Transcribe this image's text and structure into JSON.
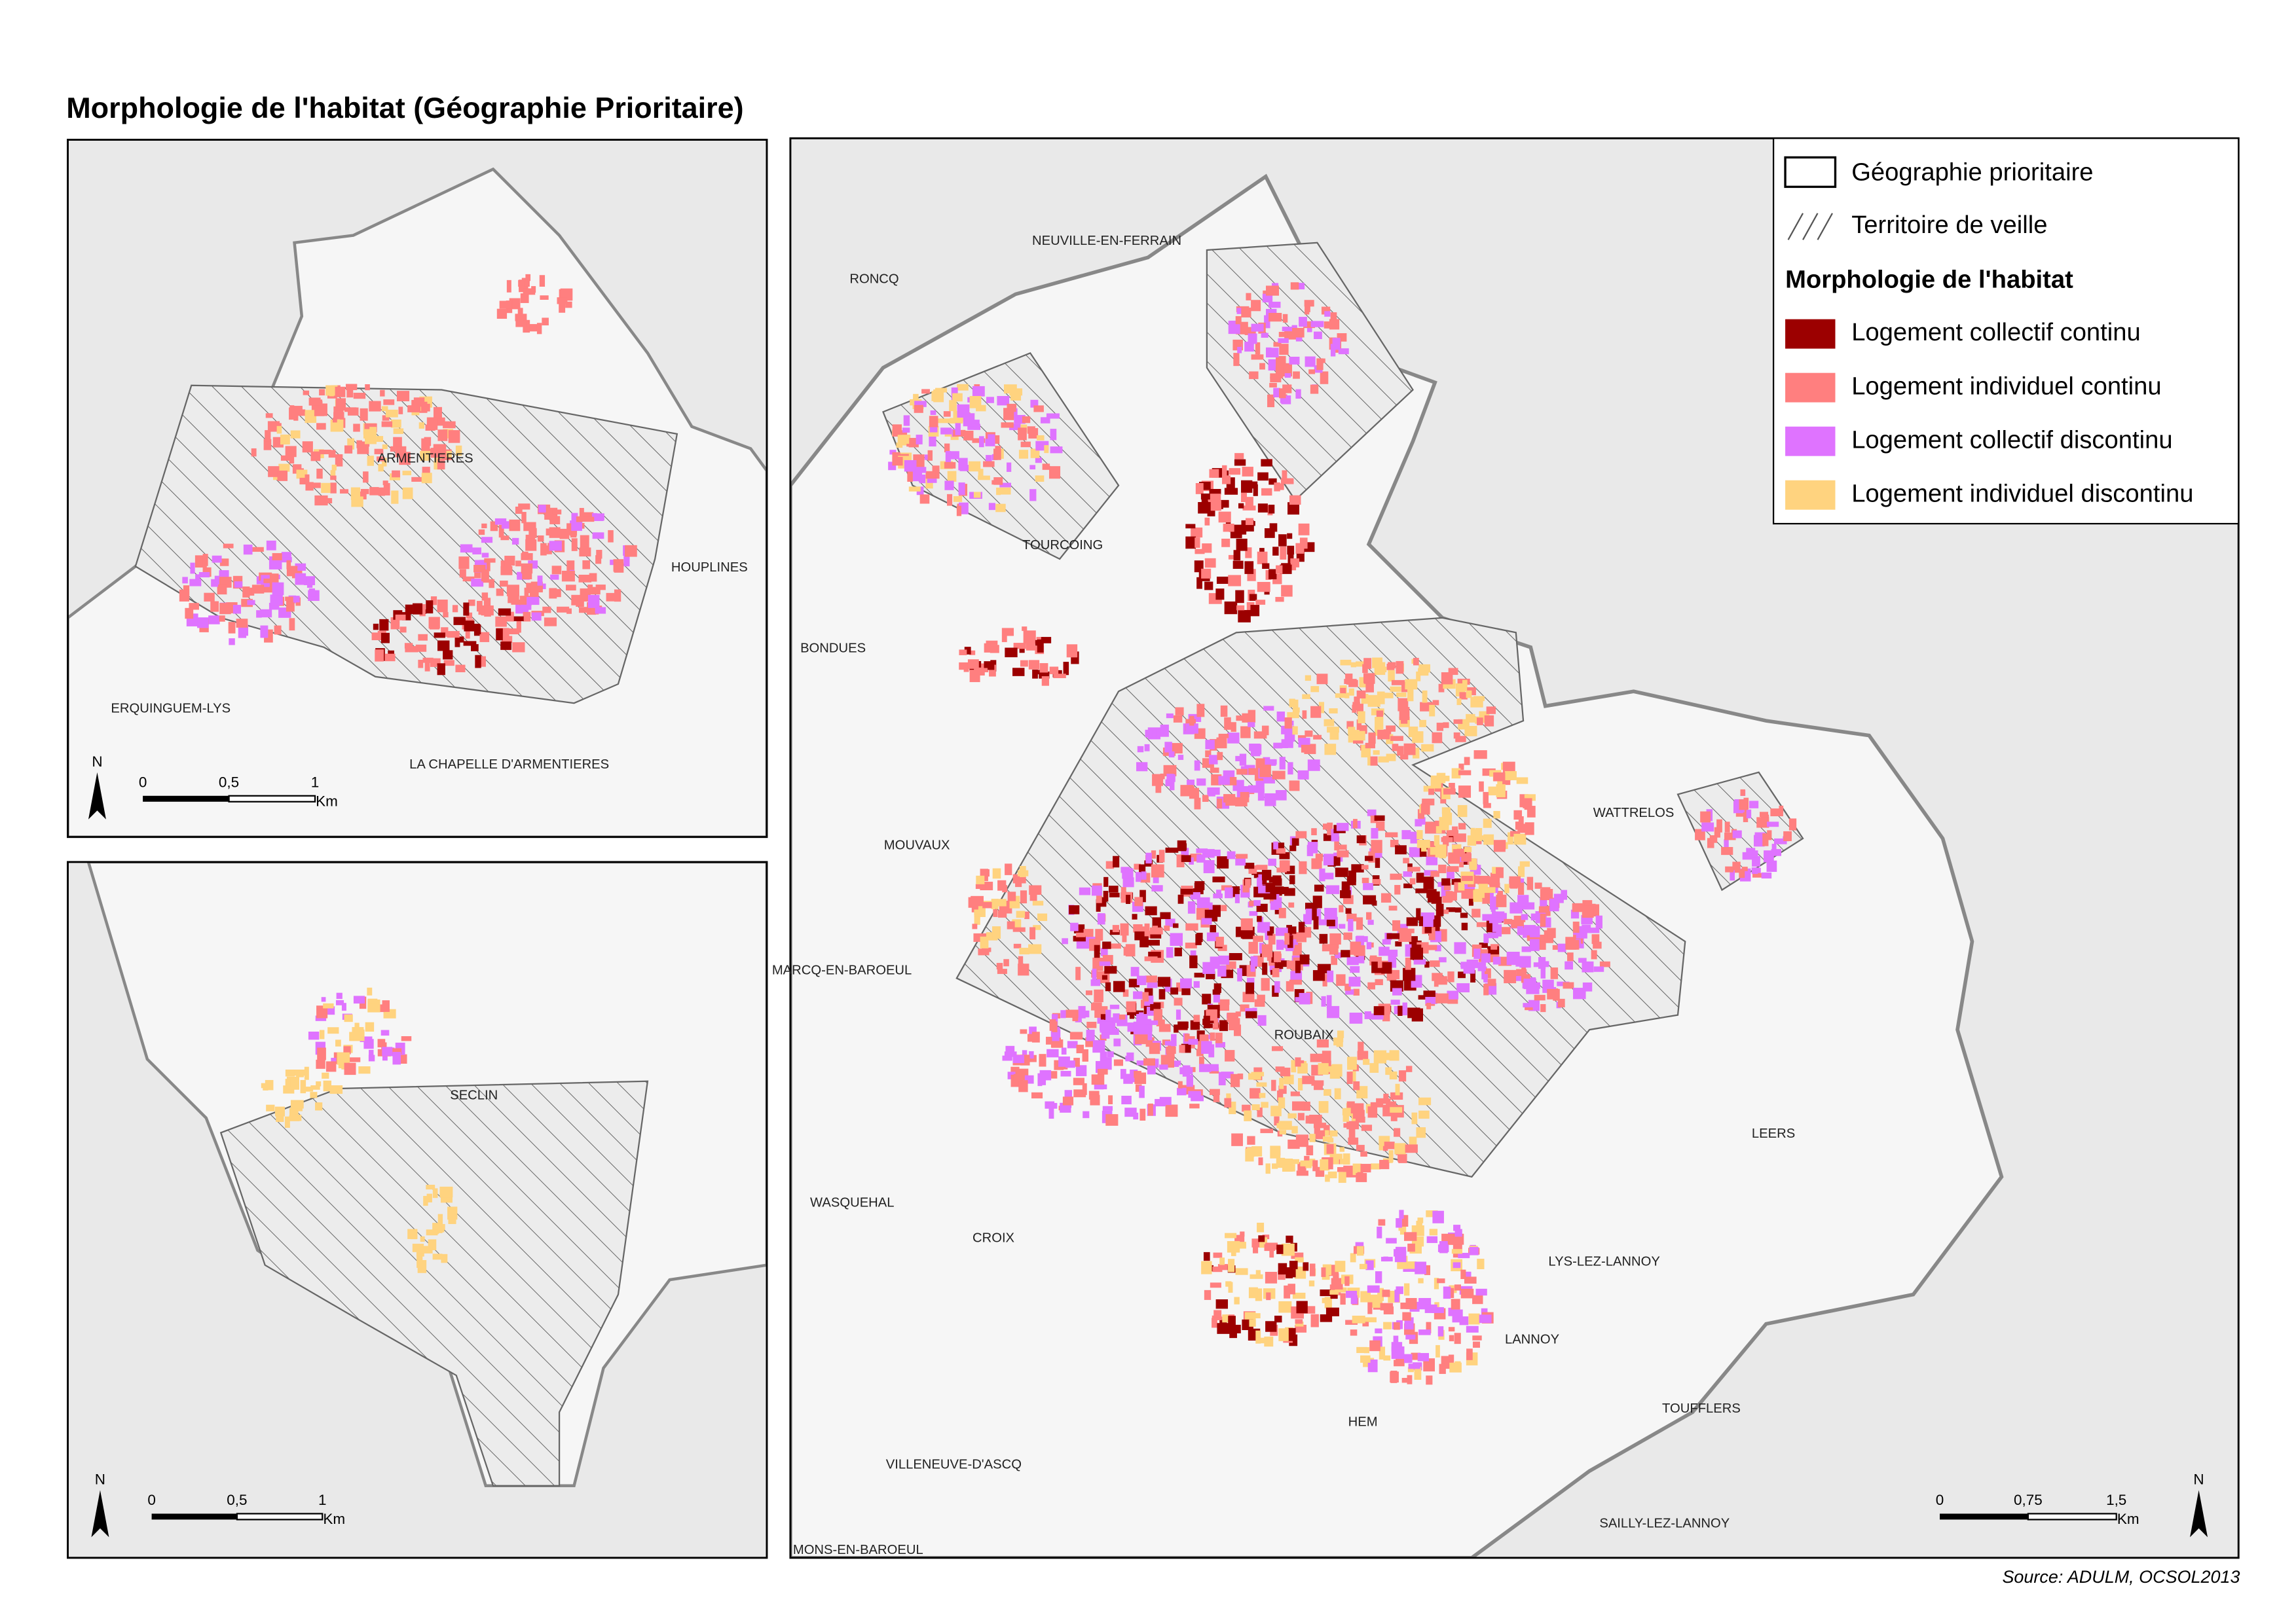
{
  "title": "Morphologie de l'habitat (Géographie Prioritaire)",
  "insets": [
    {
      "labels": [
        "ARMENTIERES",
        "HOUPLINES",
        "ERQUINGUEM-LYS",
        "LA CHAPELLE D'ARMENTIERES"
      ],
      "scale": [
        "0",
        "0,5",
        "1"
      ],
      "unit": "Km",
      "north": "N"
    },
    {
      "labels": [
        "SECLIN"
      ],
      "scale": [
        "0",
        "0,5",
        "1"
      ],
      "unit": "Km",
      "north": "N"
    }
  ],
  "main_map": {
    "labels": [
      "NEUVILLE-EN-FERRAIN",
      "RONCQ",
      "TOURCOING",
      "BONDUES",
      "MOUVAUX",
      "WATTRELOS",
      "MARCQ-EN-BAROEUL",
      "ROUBAIX",
      "LEERS",
      "WASQUEHAL",
      "CROIX",
      "LYS-LEZ-LANNOY",
      "LANNOY",
      "HEM",
      "TOUFFLERS",
      "VILLENEUVE-D'ASCQ",
      "SAILLY-LEZ-LANNOY",
      "MONS-EN-BAROEUL"
    ],
    "scale": [
      "0",
      "0,75",
      "1,5"
    ],
    "unit": "Km",
    "north": "N"
  },
  "legend": {
    "boundaries": [
      "Géographie prioritaire",
      "Territoire de veille"
    ],
    "title": "Morphologie de l'habitat",
    "items": [
      {
        "label": "Logement collectif continu",
        "color": "#9c0000"
      },
      {
        "label": "Logement individuel continu",
        "color": "#ff7f7f"
      },
      {
        "label": "Logement collectif discontinu",
        "color": "#df73ff"
      },
      {
        "label": "Logement individuel discontinu",
        "color": "#ffd37f"
      }
    ]
  },
  "source": "Source: ADULM, OCSOL2013"
}
